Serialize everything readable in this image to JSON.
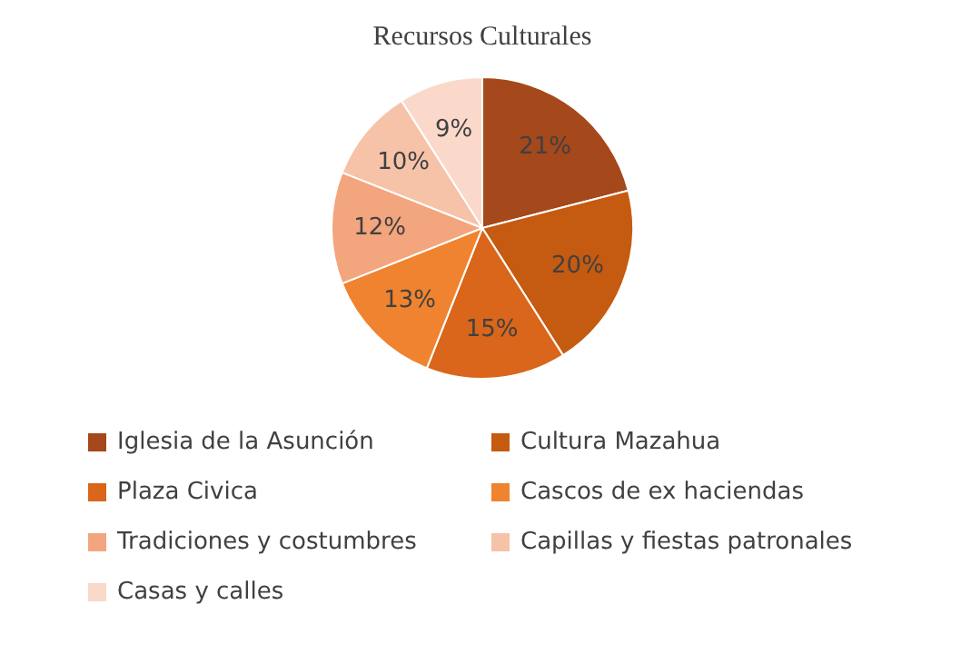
{
  "chart_data": {
    "type": "pie",
    "title": "Recursos Culturales",
    "categories": [
      "Iglesia de la Asunción",
      "Cultura Mazahua",
      "Plaza Civica",
      "Cascos de ex haciendas",
      "Tradiciones y costumbres",
      "Capillas y fiestas patronales",
      "Casas y calles"
    ],
    "values": [
      21,
      20,
      15,
      13,
      12,
      10,
      9
    ],
    "value_labels": [
      "21%",
      "20%",
      "15%",
      "13%",
      "12%",
      "10%",
      "9%"
    ],
    "colors": [
      "#a5481b",
      "#c55a11",
      "#d9661a",
      "#f0832f",
      "#f3a57e",
      "#f6c2a8",
      "#fad9ca"
    ],
    "legend": "bottom"
  }
}
